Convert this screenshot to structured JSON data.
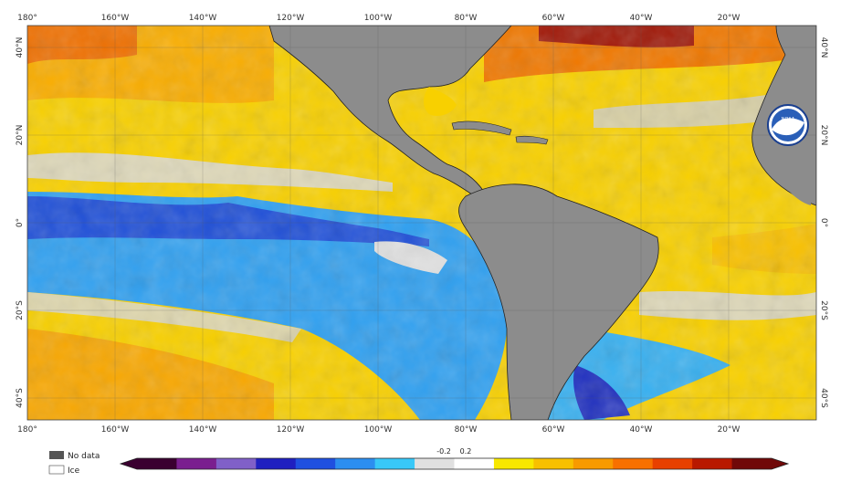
{
  "map": {
    "top_axis_labels": [
      "180°",
      "160°W",
      "140°W",
      "120°W",
      "100°W",
      "80°W",
      "60°W",
      "40°W",
      "20°W"
    ],
    "bottom_axis_labels": [
      "180°",
      "160°W",
      "140°W",
      "120°W",
      "100°W",
      "80°W",
      "60°W",
      "40°W",
      "20°W"
    ],
    "left_axis_labels": [
      "40°N",
      "20°N",
      "0°",
      "20°S",
      "40°S"
    ],
    "right_axis_labels": [
      "40°N",
      "20°N",
      "0°",
      "20°S",
      "40°S"
    ],
    "logo_text": "NOAA"
  },
  "legend": {
    "no_data_label": "No data",
    "ice_label": "Ice",
    "scale_marks": [
      "-0.2",
      "0.2"
    ],
    "colors": {
      "no_data": "#555555",
      "ice": "#ffffff",
      "land": "#8c8c8c"
    },
    "scale_colors": [
      "#3a0030",
      "#7a1f8f",
      "#8060c8",
      "#2020c0",
      "#2050e0",
      "#2c8ef0",
      "#38c8f8",
      "#e0e0e0",
      "#ffffff",
      "#f8e800",
      "#f8c000",
      "#f89a00",
      "#f87000",
      "#e84000",
      "#b81800",
      "#700808"
    ]
  }
}
